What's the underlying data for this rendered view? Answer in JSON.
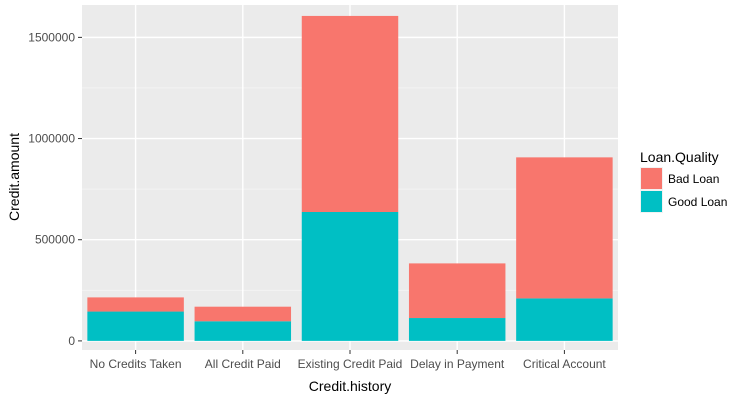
{
  "chart_data": {
    "type": "bar",
    "stacked": true,
    "categories": [
      "No Credits Taken",
      "All Credit Paid",
      "Existing Credit Paid",
      "Delay in Payment",
      "Critical Account"
    ],
    "series": [
      {
        "name": "Good Loan",
        "values": [
          145000,
          97000,
          637000,
          113000,
          210000
        ],
        "color": "#00BFC4"
      },
      {
        "name": "Bad Loan",
        "values": [
          70000,
          72000,
          969000,
          270000,
          697000
        ],
        "color": "#F8766D"
      }
    ],
    "title": "",
    "xlabel": "Credit.history",
    "ylabel": "Credit.amount",
    "ylim": [
      -45000,
      1660000
    ],
    "yticks": [
      0,
      500000,
      1000000,
      1500000
    ],
    "ytick_labels": [
      "0",
      "500000",
      "1000000",
      "1500000"
    ],
    "grid": true,
    "panel_background": "#EBEBEB",
    "legend": {
      "title": "Loan.Quality",
      "placement": "right",
      "items": [
        {
          "label": "Bad Loan",
          "color": "#F8766D"
        },
        {
          "label": "Good Loan",
          "color": "#00BFC4"
        }
      ]
    }
  }
}
